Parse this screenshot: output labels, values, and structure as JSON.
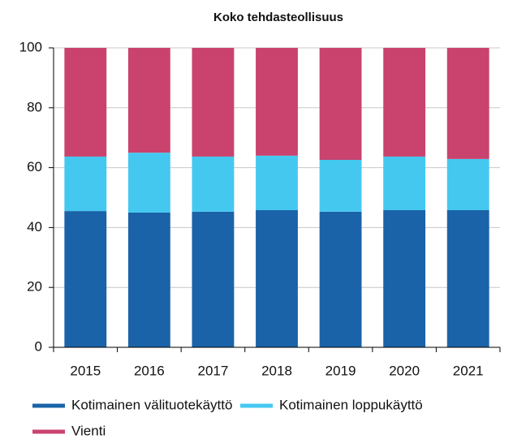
{
  "chart_data": {
    "type": "stacked_bar",
    "title": "Koko tehdasteollisuus",
    "categories": [
      "2015",
      "2016",
      "2017",
      "2018",
      "2019",
      "2020",
      "2021"
    ],
    "series": [
      {
        "name": "Kotimainen välituotekäyttö",
        "color": "#1a63a8",
        "values": [
          45.5,
          45.0,
          45.3,
          45.8,
          45.3,
          45.8,
          45.8
        ]
      },
      {
        "name": "Kotimainen loppukäyttö",
        "color": "#45c8f0",
        "values": [
          18.2,
          20.0,
          18.4,
          18.2,
          17.3,
          17.9,
          17.1
        ]
      },
      {
        "name": "Vienti",
        "color": "#c9436e",
        "values": [
          36.3,
          35.0,
          36.3,
          36.0,
          37.4,
          36.3,
          37.1
        ]
      }
    ],
    "ylim": [
      0,
      100
    ],
    "yticks": [
      0,
      20,
      40,
      60,
      80,
      100
    ],
    "grid": true
  }
}
